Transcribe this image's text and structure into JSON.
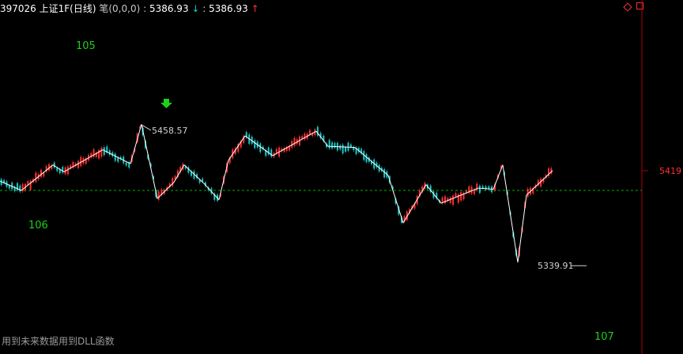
{
  "header": {
    "code_name": "397026 上证1F(日线)",
    "indicator": "笔(0,0,0)",
    "value1": "5386.93",
    "value2": "5386.93",
    "down_arrow": "↓",
    "up_arrow": "↑"
  },
  "footer_note": "用到未来数据用到DLL函数",
  "colors": {
    "background": "#000000",
    "up_candle": "#ff3030",
    "down_candle": "#19c8c8",
    "stroke_line": "#ffffff",
    "reference_line": "#00b000",
    "green_label": "#19d219",
    "axis": "#b00000"
  },
  "chart_data": {
    "type": "line",
    "title": "",
    "series": [
      {
        "values": [
          5410,
          5402,
          5424,
          5418,
          5437,
          5425,
          5459,
          5395,
          5409,
          5424,
          5408,
          5394,
          5428,
          5449,
          5432,
          5453,
          5440,
          5439,
          5415,
          5374,
          5407,
          5391,
          5404,
          5403,
          5424,
          5340,
          5398,
          5419
        ]
      }
    ],
    "extremes": [
      {
        "label": "5458.57",
        "value": 5458.57
      },
      {
        "label": "5339.91",
        "value": 5339.91
      }
    ],
    "reference_level": 5402,
    "right_axis_tick": "5419",
    "stroke_markers": [
      "105",
      "106",
      "107"
    ],
    "signal": "down-arrow"
  }
}
